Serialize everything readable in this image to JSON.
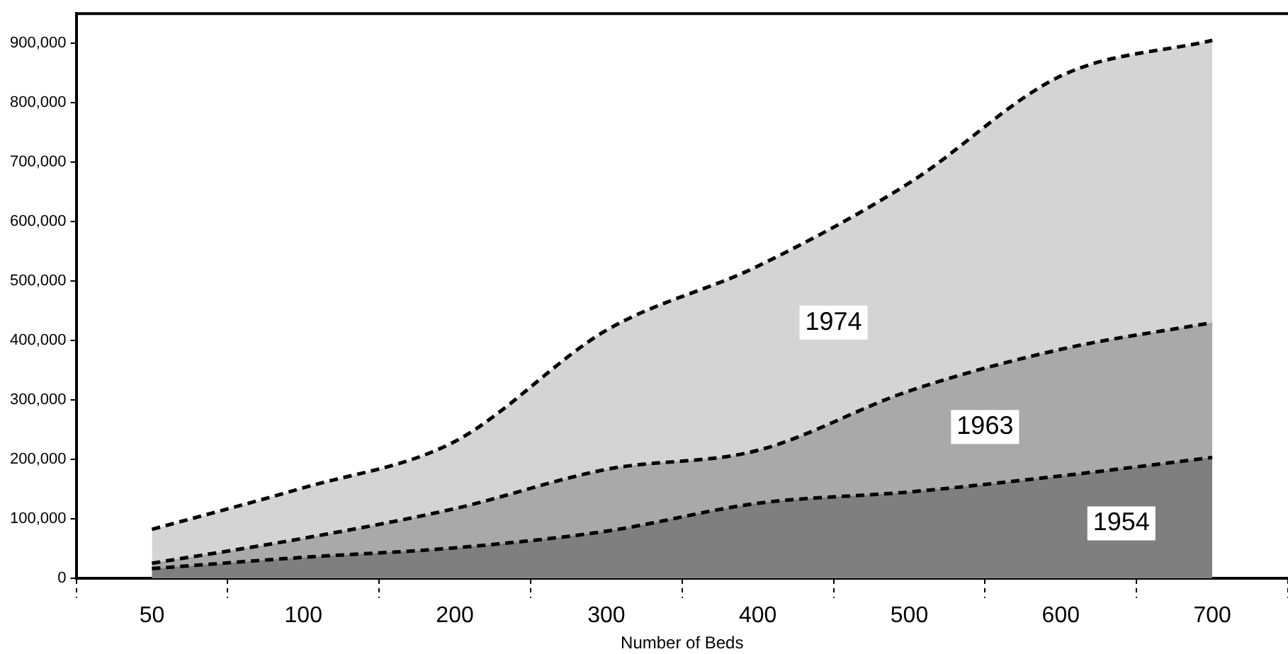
{
  "chart_data": {
    "type": "area",
    "xlabel": "Number of Beds",
    "categories": [
      "50",
      "100",
      "200",
      "300",
      "400",
      "500",
      "600",
      "700"
    ],
    "series": [
      {
        "name": "1974",
        "color": "#d4d4d4",
        "line_style": "dashed",
        "values": [
          82000,
          152000,
          230000,
          417000,
          525000,
          665000,
          845000,
          905000
        ]
      },
      {
        "name": "1963",
        "color": "#a9a9a9",
        "line_style": "dashed",
        "values": [
          25000,
          67000,
          117000,
          183000,
          215000,
          315000,
          385000,
          430000
        ]
      },
      {
        "name": "1954",
        "color": "#7f7f7f",
        "line_style": "dashed",
        "values": [
          16000,
          35000,
          51000,
          79000,
          126000,
          145000,
          172000,
          203000
        ]
      }
    ],
    "ylim": [
      0,
      950000
    ],
    "yticks": [
      {
        "value": 0,
        "label": "0"
      },
      {
        "value": 100000,
        "label": "100,000"
      },
      {
        "value": 200000,
        "label": "200,000"
      },
      {
        "value": 300000,
        "label": "300,000"
      },
      {
        "value": 400000,
        "label": "400,000"
      },
      {
        "value": 500000,
        "label": "500,000"
      },
      {
        "value": 600000,
        "label": "600,000"
      },
      {
        "value": 700000,
        "label": "700,000"
      },
      {
        "value": 800000,
        "label": "800,000"
      },
      {
        "value": 900000,
        "label": "900,000"
      }
    ],
    "grid": false,
    "legend": false,
    "marker": "none"
  }
}
